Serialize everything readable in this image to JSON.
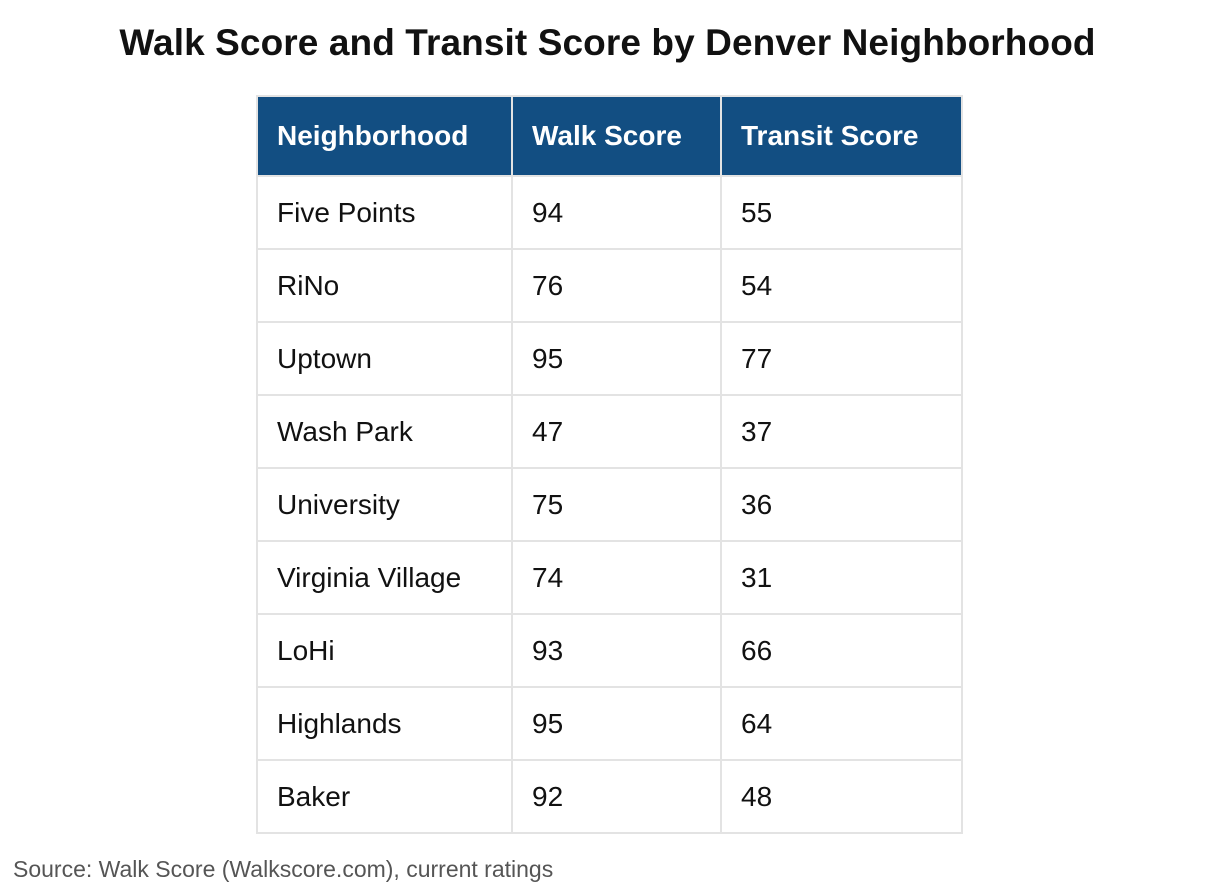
{
  "chart_data": {
    "type": "table",
    "title": "Walk Score and Transit Score by Denver Neighborhood",
    "columns": [
      "Neighborhood",
      "Walk Score",
      "Transit Score"
    ],
    "rows": [
      [
        "Five Points",
        "94",
        "55"
      ],
      [
        "RiNo",
        "76",
        "54"
      ],
      [
        "Uptown",
        "95",
        "77"
      ],
      [
        "Wash Park",
        "47",
        "37"
      ],
      [
        "University",
        "75",
        "36"
      ],
      [
        "Virginia Village",
        "74",
        "31"
      ],
      [
        "LoHi",
        "93",
        "66"
      ],
      [
        "Highlands",
        "95",
        "64"
      ],
      [
        "Baker",
        "92",
        "48"
      ]
    ],
    "source": "Source: Walk Score (Walkscore.com), current ratings"
  },
  "colors": {
    "header_background": "#124e82",
    "header_text": "#ffffff",
    "cell_border": "#e3e3e3",
    "source_text": "#555555"
  }
}
